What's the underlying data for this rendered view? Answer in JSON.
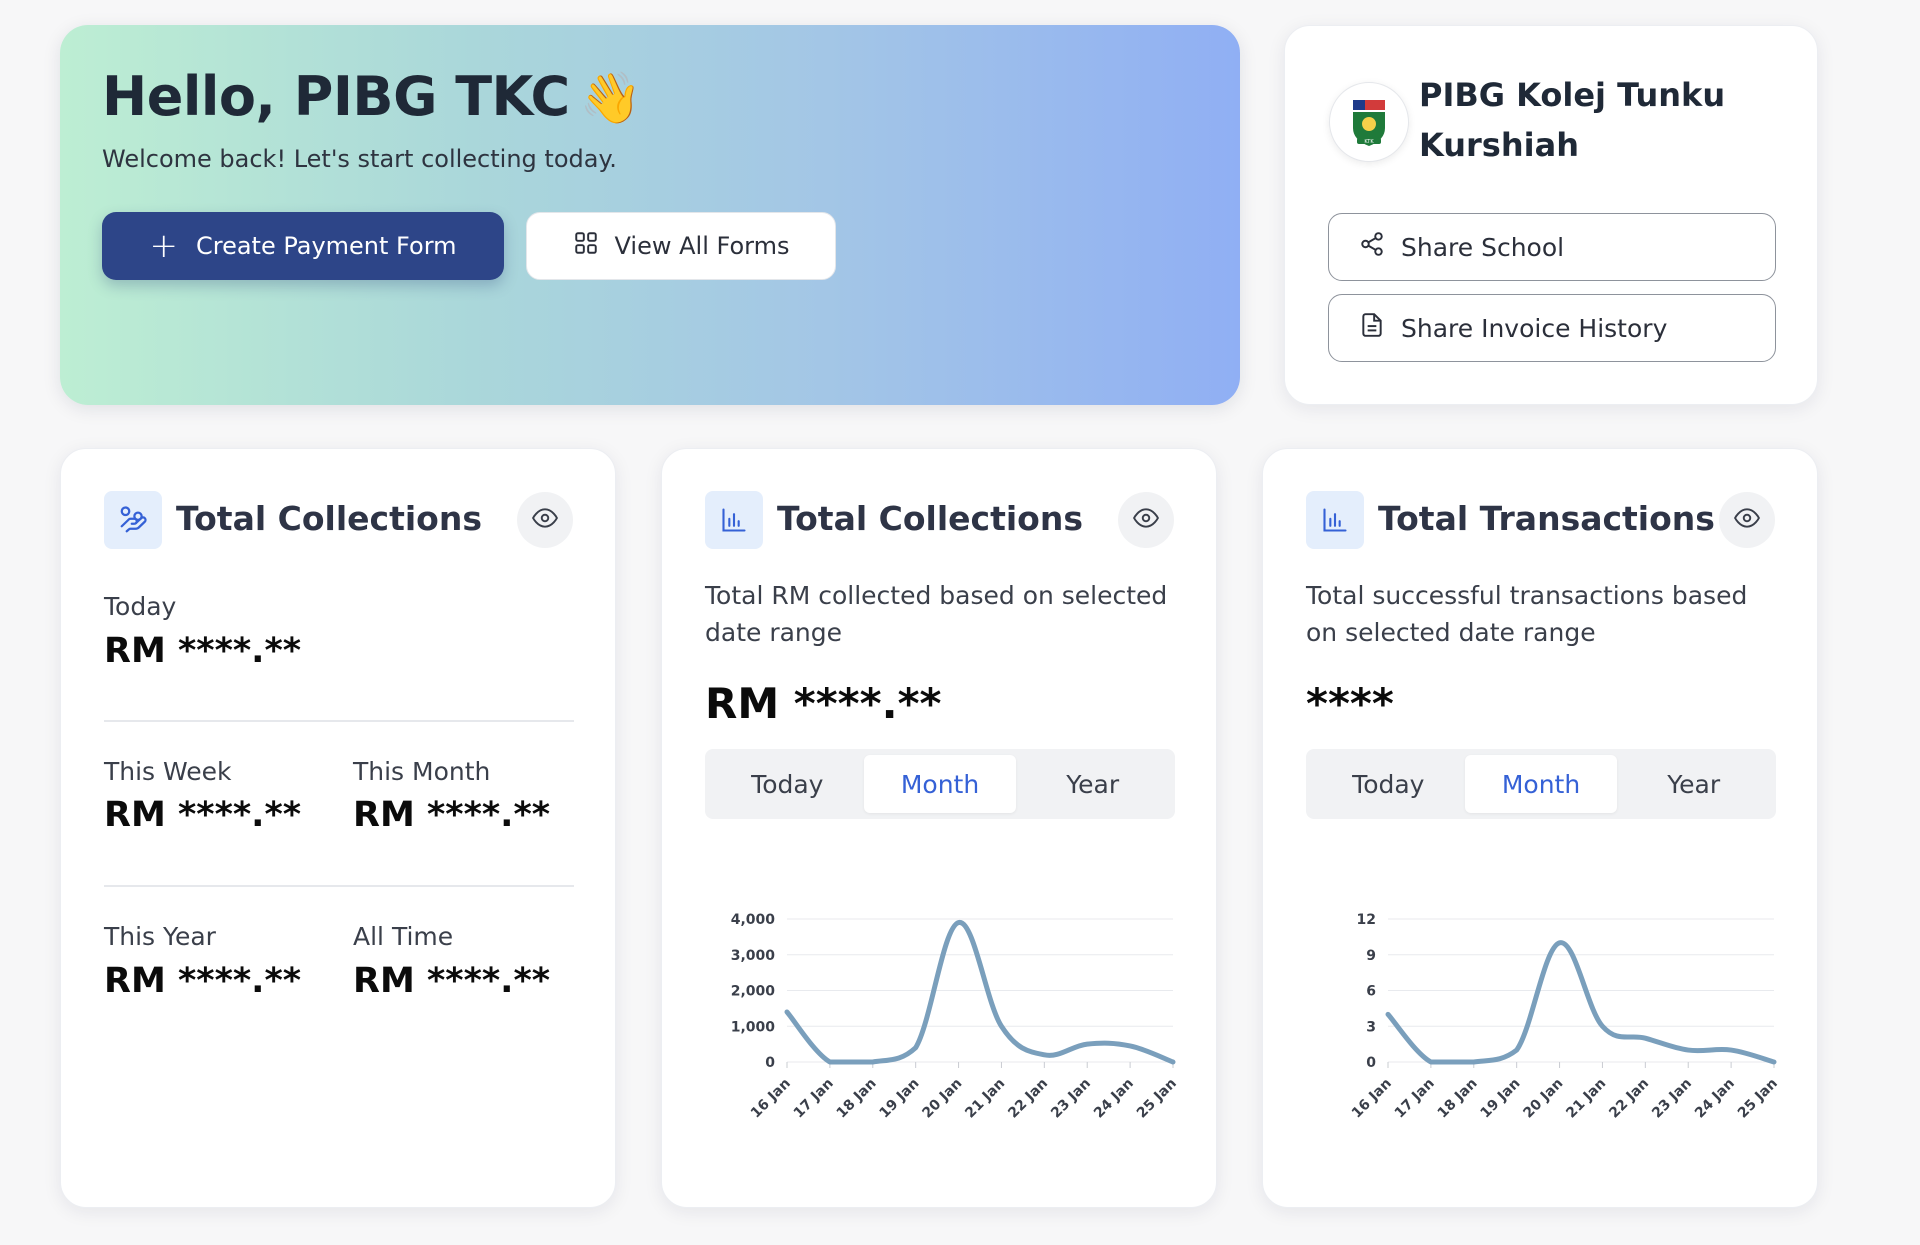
{
  "hero": {
    "greeting": "Hello, PIBG TKC",
    "wave_emoji": "👋",
    "subtitle": "Welcome back! Let's start collecting today.",
    "create_btn": "Create Payment Form",
    "view_btn": "View All Forms",
    "plus_glyph": "+"
  },
  "school": {
    "name": "PIBG Kolej Tunku Kurshiah",
    "logo_text": "KTK",
    "share_school": "Share School",
    "share_invoice": "Share Invoice History"
  },
  "collections_summary": {
    "title": "Total Collections",
    "today_label": "Today",
    "today_value": "RM ****.**",
    "week_label": "This Week",
    "week_value": "RM ****.**",
    "month_label": "This Month",
    "month_value": "RM ****.**",
    "year_label": "This Year",
    "year_value": "RM ****.**",
    "alltime_label": "All Time",
    "alltime_value": "RM ****.**"
  },
  "collections_chart": {
    "title": "Total Collections",
    "description": "Total RM collected based on selected date range",
    "value": "RM ****.**",
    "tabs": [
      "Today",
      "Month",
      "Year"
    ],
    "active_tab": "Month"
  },
  "transactions_chart": {
    "title": "Total Transactions",
    "description": "Total successful transactions based on selected date range",
    "value": "****",
    "tabs": [
      "Today",
      "Month",
      "Year"
    ],
    "active_tab": "Month"
  },
  "chart_data": [
    {
      "type": "line",
      "x": [
        "16 Jan",
        "17 Jan",
        "18 Jan",
        "19 Jan",
        "20 Jan",
        "21 Jan",
        "22 Jan",
        "23 Jan",
        "24 Jan",
        "25 Jan"
      ],
      "y_ticks": [
        "0",
        "1,000",
        "2,000",
        "3,000",
        "4,000"
      ],
      "ylim": [
        0,
        4000
      ],
      "values": [
        1400,
        0,
        0,
        400,
        3900,
        1000,
        200,
        500,
        450,
        0
      ],
      "color": "#7a9fbc",
      "grid": true
    },
    {
      "type": "line",
      "x": [
        "16 Jan",
        "17 Jan",
        "18 Jan",
        "19 Jan",
        "20 Jan",
        "21 Jan",
        "22 Jan",
        "23 Jan",
        "24 Jan",
        "25 Jan"
      ],
      "y_ticks": [
        "0",
        "3",
        "6",
        "9",
        "12"
      ],
      "ylim": [
        0,
        12
      ],
      "values": [
        4,
        0,
        0,
        1,
        10,
        3,
        2,
        1,
        1,
        0
      ],
      "color": "#7a9fbc",
      "grid": true
    }
  ],
  "colors": {
    "primary": "#2d4588",
    "accent_blue": "#3561d6",
    "line": "#7a9fbc"
  }
}
